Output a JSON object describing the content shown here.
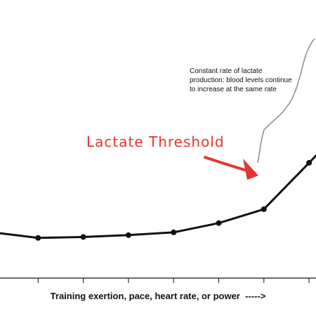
{
  "chart_data": {
    "type": "line",
    "xlabel": "Training exertion, pace, heart rate, or power  ----->",
    "ylabel": "",
    "x": [
      0,
      1,
      2,
      3,
      4,
      5,
      6,
      7,
      8
    ],
    "series": [
      {
        "values": [
          1.6,
          1.0,
          1.1,
          1.3,
          1.6,
          2.6,
          4.1,
          9.1,
          14.2
        ]
      }
    ],
    "ylim": [
      0,
      15
    ],
    "grid": false,
    "annotations": [
      {
        "text": "Lactate Threshold",
        "points_to_x": 6,
        "color": "#e8332e"
      },
      {
        "text": "Constant rate of lactate production: blood levels continue to increase at the same rate"
      }
    ]
  },
  "colors": {
    "line": "#111111",
    "annotation": "#e8332e",
    "guide": "#8a8a8a"
  }
}
